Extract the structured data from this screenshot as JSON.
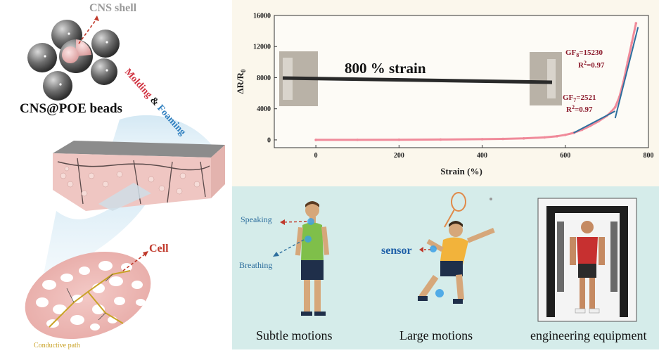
{
  "left": {
    "shell_label": "CNS shell",
    "beads_label": "CNS@POE beads",
    "process": {
      "molding": "Molding",
      "amp": "&",
      "foaming": "Foaming"
    },
    "cell_label": "Cell",
    "path_label": "Conductive path"
  },
  "chart_data": {
    "type": "line",
    "xlabel": "Strain (%)",
    "ylabel": "ΔR/R0",
    "xlim": [
      -100,
      800
    ],
    "ylim": [
      -1000,
      16000
    ],
    "xticks": [
      0,
      200,
      400,
      600,
      800
    ],
    "yticks": [
      0,
      4000,
      8000,
      12000,
      16000
    ],
    "series": [
      {
        "x": [
          0,
          100,
          200,
          300,
          400,
          450,
          500,
          550,
          580,
          600,
          620,
          640,
          660,
          680,
          700,
          710,
          720,
          730,
          740,
          750,
          760,
          770
        ],
        "values": [
          0,
          5,
          20,
          45,
          90,
          130,
          190,
          320,
          470,
          650,
          900,
          1300,
          1800,
          2400,
          3100,
          3600,
          4200,
          5500,
          7500,
          10000,
          12500,
          15000
        ]
      }
    ],
    "fits": [
      {
        "x": [
          620,
          720
        ],
        "values": [
          900,
          3700
        ]
      },
      {
        "x": [
          720,
          775
        ],
        "values": [
          2800,
          14500
        ]
      }
    ],
    "annotations": {
      "strain_text": "800 % strain",
      "gf8": "GF8=15230",
      "r2_8": "R2=0.97",
      "gf7": "GF7=2521",
      "r2_7": "R2=0.97"
    }
  },
  "motions": {
    "speaking": "Speaking",
    "breathing": "Breathing",
    "sensor": "sensor",
    "subtle_caption": "Subtle motions",
    "large_caption": "Large motions",
    "equipment_caption": "engineering equipment"
  },
  "colors": {
    "curve": "#f08a9a",
    "fit": "#2e6f9e",
    "gf_text": "#8b1a2b",
    "sensor_blue": "#1e5fa8",
    "arrow_red": "#c0392b"
  }
}
